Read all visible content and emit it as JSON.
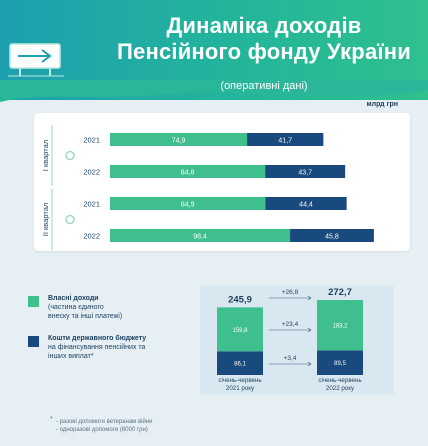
{
  "title_line1": "Динаміка доходів",
  "title_line2": "Пенсійного фонду України",
  "subtitle": "(оперативні дані)",
  "unit": "млрд грн",
  "colors": {
    "own_income": "#3fbf8e",
    "state_budget": "#184a7d",
    "header_start": "#1d9fb0",
    "header_end": "#2ec08e"
  },
  "icon": "arrow-sign-icon",
  "chart_data": [
    {
      "type": "bar",
      "stacked": true,
      "orientation": "horizontal",
      "groups": [
        {
          "label": "І квартал",
          "rows": [
            {
              "year": "2021",
              "own": "74,9",
              "budget": "41,7",
              "own_value": 74.9,
              "budget_value": 41.7
            },
            {
              "year": "2022",
              "own": "84,8",
              "budget": "43,7",
              "own_value": 84.8,
              "budget_value": 43.7
            }
          ]
        },
        {
          "label": "ІІ квартал",
          "rows": [
            {
              "year": "2021",
              "own": "84,9",
              "budget": "44,4",
              "own_value": 84.9,
              "budget_value": 44.4
            },
            {
              "year": "2022",
              "own": "98,4",
              "budget": "45,8",
              "own_value": 98.4,
              "budget_value": 45.8
            }
          ]
        }
      ],
      "series": [
        {
          "name": "Власні доходи",
          "key": "own"
        },
        {
          "name": "Кошти державного бюджету",
          "key": "budget"
        }
      ]
    },
    {
      "type": "bar",
      "stacked": true,
      "orientation": "vertical",
      "categories": [
        "січень-червень 2021 року",
        "січень-червень 2022 року"
      ],
      "category_lines": [
        [
          "січень-червень",
          "2021 року"
        ],
        [
          "січень-червень",
          "2022 року"
        ]
      ],
      "totals": [
        "245,9",
        "272,7"
      ],
      "total_values": [
        245.9,
        272.7
      ],
      "own": [
        "159,8",
        "183,2"
      ],
      "own_values": [
        159.8,
        183.2
      ],
      "budget": [
        "86,1",
        "89,5"
      ],
      "budget_values": [
        86.1,
        89.5
      ],
      "changes": {
        "total": "+26,8",
        "own": "+23,4",
        "budget": "+3,4"
      }
    }
  ],
  "legend": [
    {
      "title": "Власні доходи",
      "lines": [
        "(частина єдиного",
        "внеску та інші платежі)"
      ]
    },
    {
      "title": "Кошти державного бюджету",
      "lines": [
        "на фінансування пенсійних та",
        "інших виплат*"
      ]
    }
  ],
  "footnote": {
    "star": "*",
    "lines": [
      "- разові допомоги ветеранам війни",
      "- одноразові допомоги (8000 грн)"
    ]
  }
}
